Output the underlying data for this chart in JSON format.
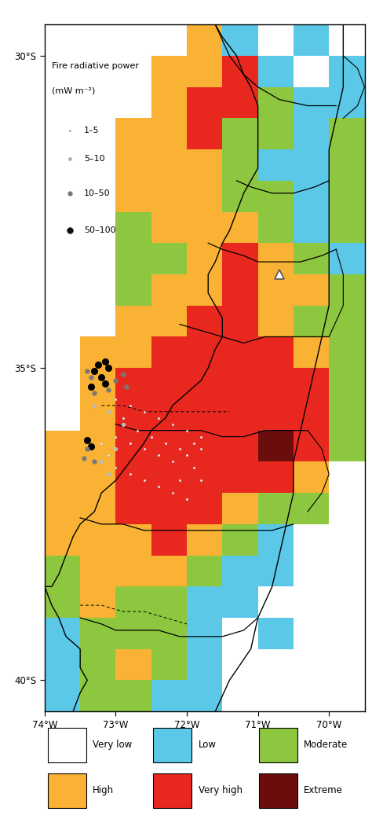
{
  "colors": {
    "very_low": "#FFFFFF",
    "low": "#5BC8E8",
    "moderate": "#8DC63F",
    "high": "#F9B233",
    "very_high": "#E8281E",
    "extreme": "#6B0D0D",
    "outside": "#FFFFFF"
  },
  "lon_min": -74.0,
  "lon_max": -69.5,
  "lat_min": -40.5,
  "lat_max": -29.5,
  "x_ticks": [
    -74,
    -73,
    -72,
    -71,
    -70
  ],
  "x_labels": [
    "74°W",
    "73°W",
    "72°W",
    "71°W",
    "70°W"
  ],
  "y_ticks": [
    -30,
    -35,
    -40
  ],
  "y_labels": [
    "30°S",
    "35°S",
    "40°S"
  ],
  "frp_legend_title": "Fire radiative power\n(mW m⁻²)",
  "frp_sizes": [
    "1–5",
    "5–10",
    "10–50",
    "50–100"
  ],
  "legend_labels": [
    "Very low",
    "Low",
    "Moderate",
    "High",
    "Very high",
    "Extreme"
  ]
}
